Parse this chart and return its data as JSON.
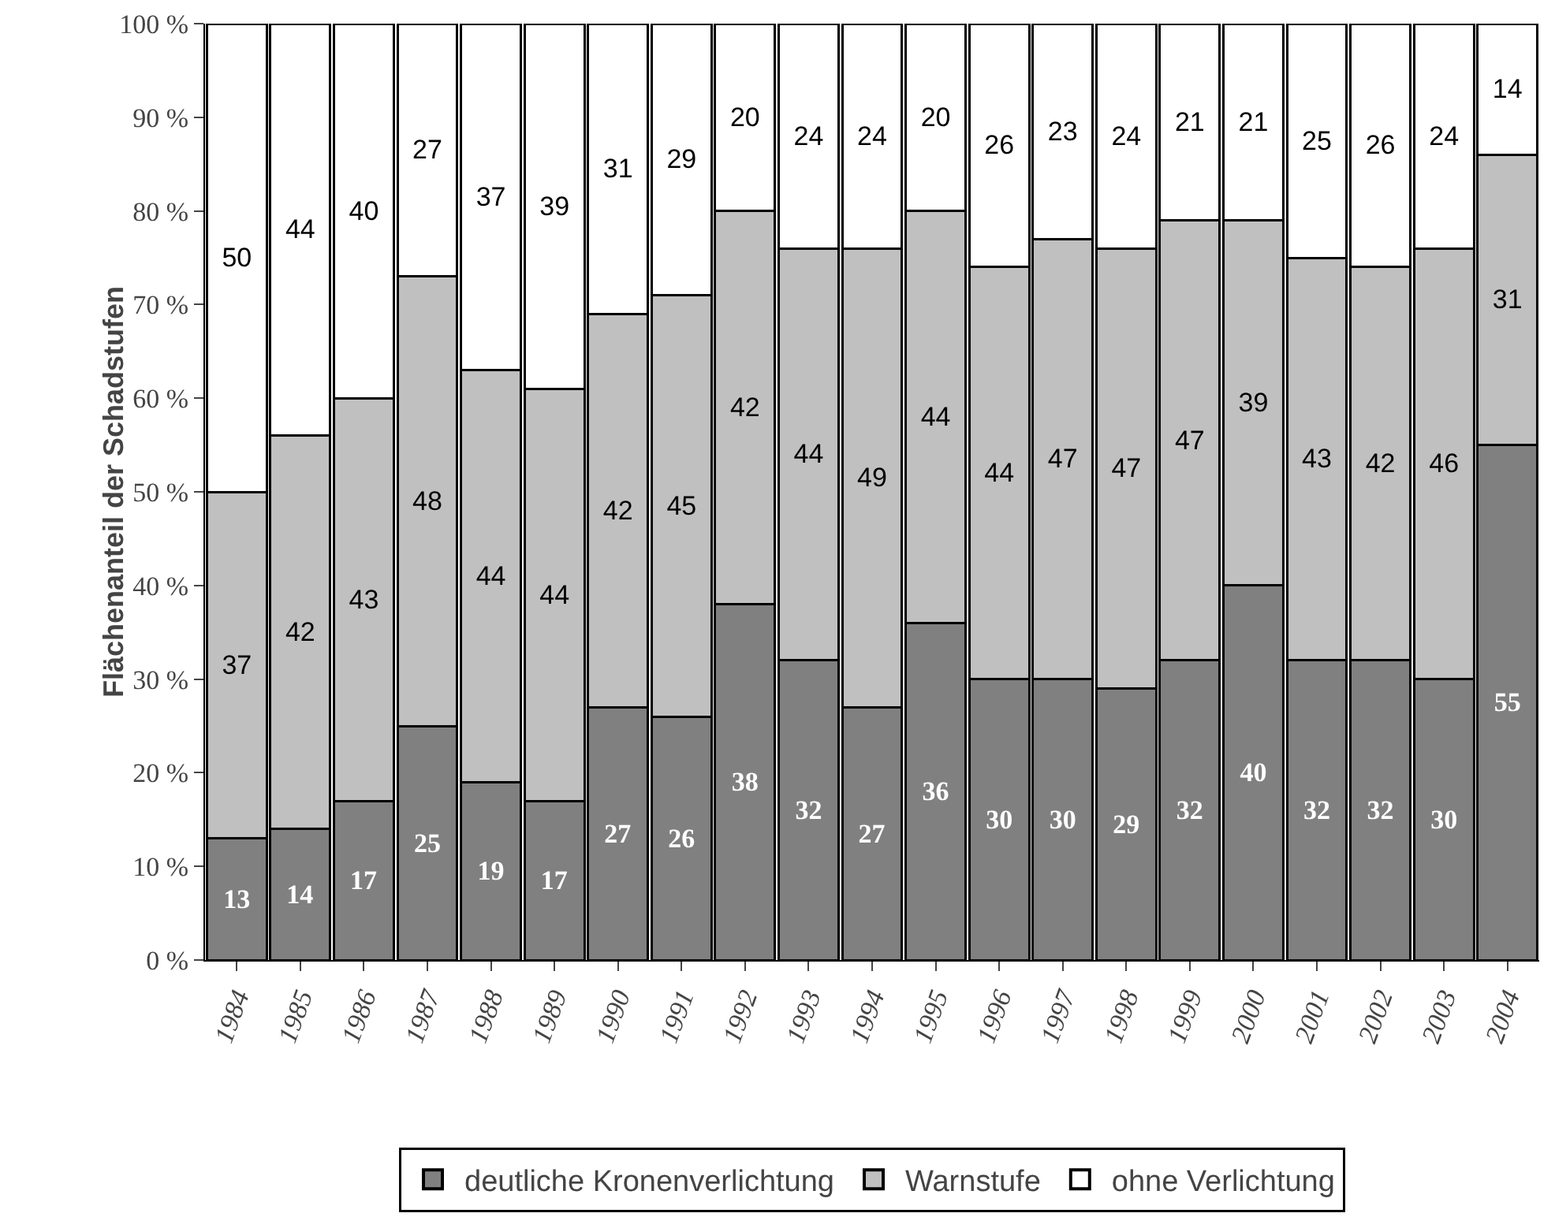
{
  "chart_data": {
    "type": "bar",
    "stacked": true,
    "ylabel": "Flächenanteil der Schadstufen",
    "categories": [
      "1984",
      "1985",
      "1986",
      "1987",
      "1988",
      "1989",
      "1990",
      "1991",
      "1992",
      "1993",
      "1994",
      "1995",
      "1996",
      "1997",
      "1998",
      "1999",
      "2000",
      "2001",
      "2002",
      "2003",
      "2004"
    ],
    "series": [
      {
        "name": "deutliche Kronenverlichtung",
        "color": "#808080",
        "values": [
          13,
          14,
          17,
          25,
          19,
          17,
          27,
          26,
          38,
          32,
          27,
          36,
          30,
          30,
          29,
          32,
          40,
          32,
          32,
          30,
          55
        ]
      },
      {
        "name": "Warnstufe",
        "color": "#c0c0c0",
        "values": [
          37,
          42,
          43,
          48,
          44,
          44,
          42,
          45,
          42,
          44,
          49,
          44,
          44,
          47,
          47,
          47,
          39,
          43,
          42,
          46,
          31
        ]
      },
      {
        "name": "ohne Verlichtung",
        "color": "#ffffff",
        "values": [
          50,
          44,
          40,
          27,
          37,
          39,
          31,
          29,
          20,
          24,
          24,
          20,
          26,
          23,
          24,
          21,
          21,
          25,
          26,
          24,
          14
        ]
      }
    ],
    "ylim": [
      0,
      100
    ],
    "yticks": [
      {
        "value": 0,
        "label": "0 %"
      },
      {
        "value": 10,
        "label": "10 %"
      },
      {
        "value": 20,
        "label": "20 %"
      },
      {
        "value": 30,
        "label": "30 %"
      },
      {
        "value": 40,
        "label": "40 %"
      },
      {
        "value": 50,
        "label": "50 %"
      },
      {
        "value": 60,
        "label": "60 %"
      },
      {
        "value": 70,
        "label": "70 %"
      },
      {
        "value": 80,
        "label": "80 %"
      },
      {
        "value": 90,
        "label": "90 %"
      },
      {
        "value": 100,
        "label": "100 %"
      }
    ],
    "data_labels": true,
    "grid": false,
    "legend": "bottom"
  }
}
